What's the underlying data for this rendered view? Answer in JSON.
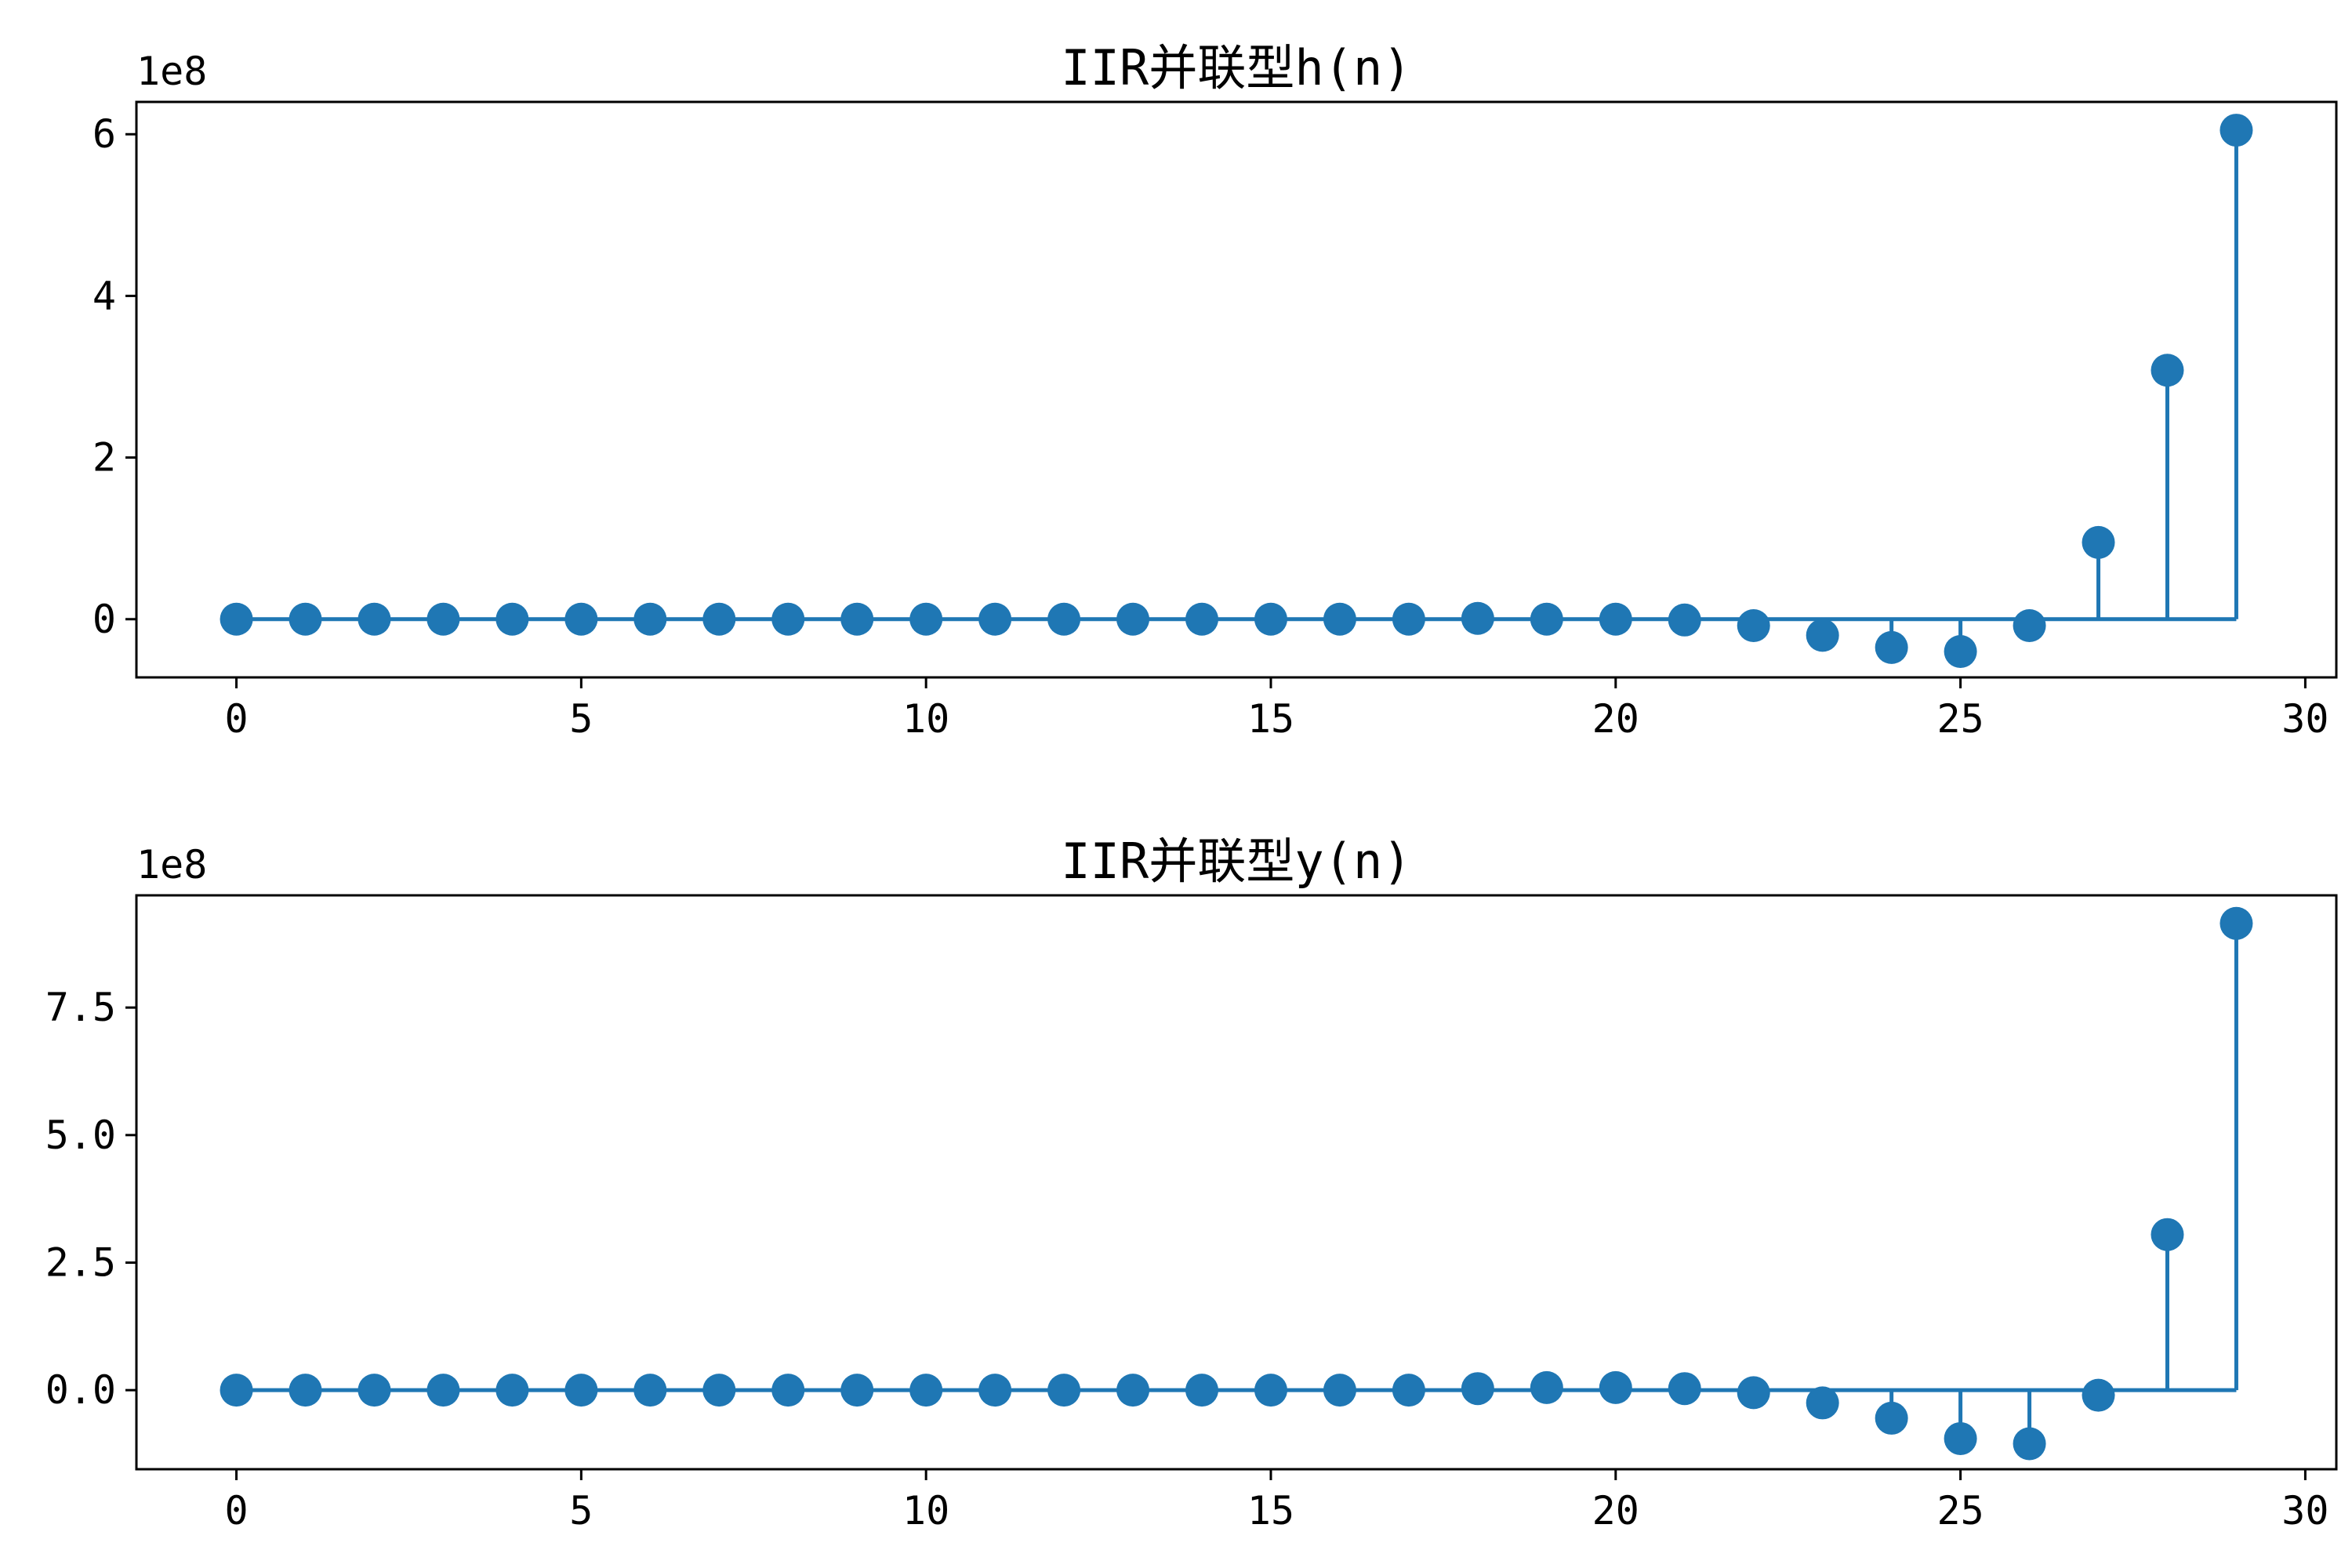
{
  "chart_data": [
    {
      "type": "stem",
      "title": "IIR并联型h(n)",
      "offset_label": "1e8",
      "color": "#1f77b4",
      "x": [
        0,
        1,
        2,
        3,
        4,
        5,
        6,
        7,
        8,
        9,
        10,
        11,
        12,
        13,
        14,
        15,
        16,
        17,
        18,
        19,
        20,
        21,
        22,
        23,
        24,
        25,
        26,
        27,
        28,
        29
      ],
      "values": [
        0,
        0,
        0,
        0,
        0,
        0,
        0,
        0,
        0,
        0,
        0,
        0,
        0,
        0,
        0,
        0,
        0,
        0,
        0.01,
        0,
        0,
        -0.01,
        -0.08,
        -0.2,
        -0.35,
        -0.4,
        -0.08,
        0.95,
        3.08,
        6.05
      ],
      "xlim": [
        -1.45,
        30.45
      ],
      "ylim": [
        -0.72,
        6.4
      ],
      "xticks": [
        0,
        5,
        10,
        15,
        20,
        25,
        30
      ],
      "xtick_labels": [
        "0",
        "5",
        "10",
        "15",
        "20",
        "25",
        "30"
      ],
      "yticks": [
        0,
        2,
        4,
        6
      ],
      "ytick_labels": [
        "0",
        "2",
        "4",
        "6"
      ]
    },
    {
      "type": "stem",
      "title": "IIR并联型y(n)",
      "offset_label": "1e8",
      "color": "#1f77b4",
      "x": [
        0,
        1,
        2,
        3,
        4,
        5,
        6,
        7,
        8,
        9,
        10,
        11,
        12,
        13,
        14,
        15,
        16,
        17,
        18,
        19,
        20,
        21,
        22,
        23,
        24,
        25,
        26,
        27,
        28,
        29
      ],
      "values": [
        0,
        0,
        0,
        0,
        0,
        0,
        0,
        0,
        0,
        0,
        0,
        0,
        0,
        0,
        0,
        0,
        0,
        0,
        0.03,
        0.05,
        0.05,
        0.03,
        -0.05,
        -0.25,
        -0.55,
        -0.95,
        -1.05,
        -0.1,
        3.05,
        9.15
      ],
      "xlim": [
        -1.45,
        30.45
      ],
      "ylim": [
        -1.55,
        9.7
      ],
      "xticks": [
        0,
        5,
        10,
        15,
        20,
        25,
        30
      ],
      "xtick_labels": [
        "0",
        "5",
        "10",
        "15",
        "20",
        "25",
        "30"
      ],
      "yticks": [
        0,
        2.5,
        5,
        7.5
      ],
      "ytick_labels": [
        "0.0",
        "2.5",
        "5.0",
        "7.5"
      ]
    }
  ]
}
